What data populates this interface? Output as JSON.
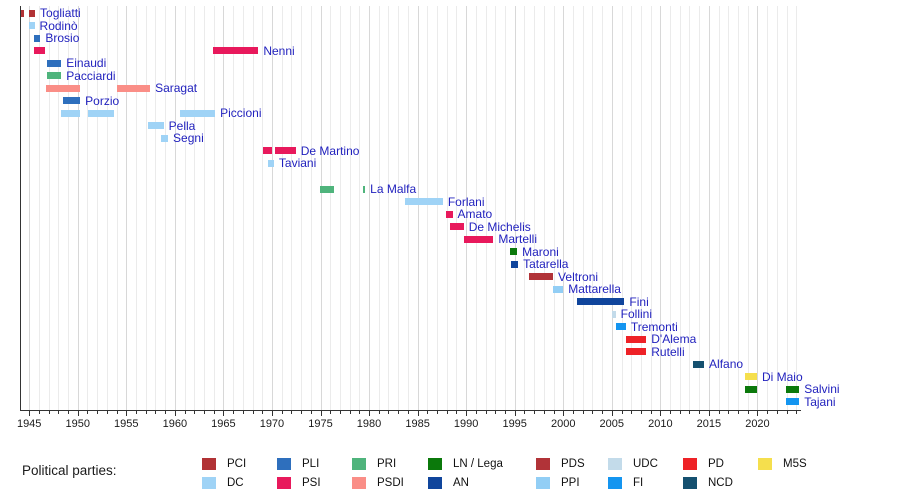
{
  "chart_data": {
    "type": "timeline",
    "title": "",
    "x_axis": {
      "min": 1944,
      "max": 2024.5,
      "major_tick_labels": [
        "1945",
        "1950",
        "1955",
        "1960",
        "1965",
        "1970",
        "1975",
        "1980",
        "1985",
        "1990",
        "1995",
        "2000",
        "2005",
        "2010",
        "2015",
        "2020"
      ],
      "major_tick_interval_years": 5,
      "minor_tick_interval_years": 1,
      "grid": "on, vertical, yearly (darker every 5 years)"
    },
    "party_colors": {
      "PCI": "#b13235",
      "DC": "#9fd3f6",
      "PLI": "#2e6fbd",
      "PSI": "#e8195c",
      "PRI": "#4fb47c",
      "PSDI": "#fa8e87",
      "LN / Lega": "#0b790b",
      "AN": "#10459c",
      "PDS": "#b13338",
      "PPI": "#92cef5",
      "UDC": "#c3dbea",
      "FI": "#1495f0",
      "PD": "#ee2227",
      "NCD": "#15506f",
      "M5S": "#f5df4d"
    },
    "people": [
      {
        "name": "Togliatti",
        "party": "PCI",
        "terms": [
          [
            1944.2,
            1944.5
          ],
          [
            1944.95,
            1945.6
          ]
        ]
      },
      {
        "name": "Rodinò",
        "party": "DC",
        "terms": [
          [
            1944.95,
            1945.55
          ]
        ]
      },
      {
        "name": "Brosio",
        "party": "PLI",
        "terms": [
          [
            1945.45,
            1946.15
          ]
        ]
      },
      {
        "name": "Nenni",
        "party": "PSI",
        "terms": [
          [
            1945.45,
            1946.6
          ],
          [
            1963.95,
            1968.6
          ]
        ]
      },
      {
        "name": "Einaudi",
        "party": "PLI",
        "terms": [
          [
            1946.8,
            1948.3
          ]
        ]
      },
      {
        "name": "Pacciardi",
        "party": "PRI",
        "terms": [
          [
            1946.8,
            1948.3
          ]
        ]
      },
      {
        "name": "Saragat",
        "party": "PSDI",
        "terms": [
          [
            1946.75,
            1950.25
          ],
          [
            1954.05,
            1957.45
          ]
        ]
      },
      {
        "name": "Porzio",
        "party": "PLI",
        "terms": [
          [
            1948.45,
            1950.25
          ]
        ]
      },
      {
        "name": "Piccioni",
        "party": "DC",
        "terms": [
          [
            1948.3,
            1950.25
          ],
          [
            1951.1,
            1953.75
          ],
          [
            1960.55,
            1964.15
          ]
        ]
      },
      {
        "name": "Pella",
        "party": "DC",
        "terms": [
          [
            1957.2,
            1958.85
          ]
        ]
      },
      {
        "name": "Segni",
        "party": "DC",
        "terms": [
          [
            1958.55,
            1959.3
          ]
        ]
      },
      {
        "name": "De Martino",
        "party": "PSI",
        "terms": [
          [
            1969.1,
            1970.0
          ],
          [
            1970.35,
            1972.45
          ]
        ]
      },
      {
        "name": "Taviani",
        "party": "DC",
        "terms": [
          [
            1969.6,
            1970.2
          ]
        ]
      },
      {
        "name": "La Malfa",
        "party": "PRI",
        "terms": [
          [
            1974.9,
            1976.4
          ],
          [
            1979.35,
            1979.6
          ]
        ]
      },
      {
        "name": "Forlani",
        "party": "DC",
        "terms": [
          [
            1983.7,
            1987.6
          ]
        ]
      },
      {
        "name": "Amato",
        "party": "PSI",
        "terms": [
          [
            1987.9,
            1988.6
          ]
        ]
      },
      {
        "name": "De Michelis",
        "party": "PSI",
        "terms": [
          [
            1988.3,
            1989.75
          ]
        ]
      },
      {
        "name": "Martelli",
        "party": "PSI",
        "terms": [
          [
            1989.75,
            1992.8
          ]
        ]
      },
      {
        "name": "Maroni",
        "party": "LN / Lega",
        "terms": [
          [
            1994.55,
            1995.25
          ]
        ]
      },
      {
        "name": "Tatarella",
        "party": "AN",
        "terms": [
          [
            1994.65,
            1995.35
          ]
        ]
      },
      {
        "name": "Veltroni",
        "party": "PDS",
        "terms": [
          [
            1996.5,
            1998.95
          ]
        ]
      },
      {
        "name": "Mattarella",
        "party": "PPI",
        "terms": [
          [
            1998.95,
            2000.0
          ]
        ]
      },
      {
        "name": "Fini",
        "party": "AN",
        "terms": [
          [
            2001.45,
            2006.3
          ]
        ]
      },
      {
        "name": "Follini",
        "party": "UDC",
        "terms": [
          [
            2005.0,
            2005.4
          ]
        ]
      },
      {
        "name": "Tremonti",
        "party": "FI",
        "terms": [
          [
            2005.45,
            2006.45
          ]
        ]
      },
      {
        "name": "D'Alema",
        "party": "PD",
        "terms": [
          [
            2006.5,
            2008.55
          ]
        ]
      },
      {
        "name": "Rutelli",
        "party": "PD",
        "terms": [
          [
            2006.5,
            2008.55
          ]
        ]
      },
      {
        "name": "Alfano",
        "party": "NCD",
        "terms": [
          [
            2013.4,
            2014.5
          ]
        ]
      },
      {
        "name": "Di Maio",
        "party": "M5S",
        "terms": [
          [
            2018.7,
            2019.95
          ]
        ]
      },
      {
        "name": "Salvini",
        "party": "LN / Lega",
        "terms": [
          [
            2018.7,
            2019.95
          ],
          [
            2022.95,
            2024.3
          ]
        ]
      },
      {
        "name": "Tajani",
        "party": "FI",
        "terms": [
          [
            2022.95,
            2024.3
          ]
        ]
      }
    ],
    "legend": {
      "title": "Political parties:",
      "columns": [
        {
          "items": [
            "PCI",
            "DC"
          ]
        },
        {
          "items": [
            "PLI",
            "PSI"
          ]
        },
        {
          "items": [
            "PRI",
            "PSDI"
          ]
        },
        {
          "items": [
            "LN / Lega",
            "AN"
          ]
        },
        {
          "items": [
            "PDS",
            "PPI"
          ]
        },
        {
          "items": [
            "UDC",
            "FI"
          ]
        },
        {
          "items": [
            "PD",
            "NCD"
          ]
        },
        {
          "items": [
            "M5S"
          ]
        }
      ]
    }
  }
}
